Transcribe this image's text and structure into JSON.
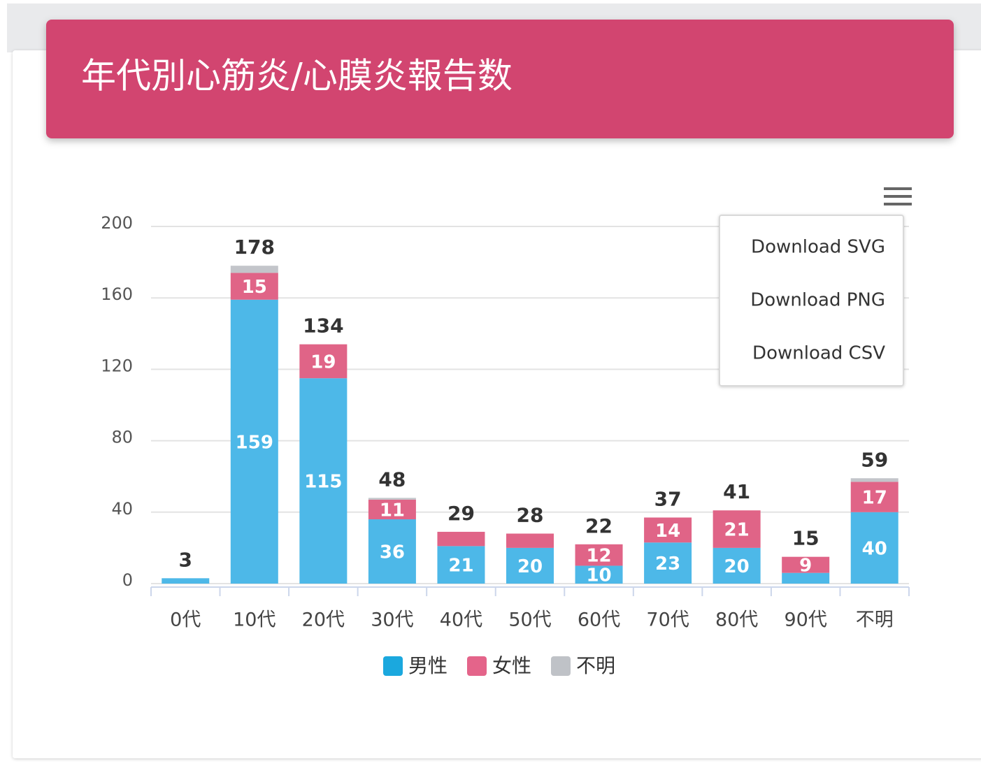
{
  "chart_data": {
    "type": "stacked_bar",
    "title": "年代別心筋炎/心膜炎報告数",
    "categories": [
      "0代",
      "10代",
      "20代",
      "30代",
      "40代",
      "50代",
      "60代",
      "70代",
      "80代",
      "90代",
      "不明"
    ],
    "series": [
      {
        "name": "男性",
        "color": "#4db8e8",
        "legend_color": "#1ba8de",
        "values": [
          3,
          159,
          115,
          36,
          21,
          20,
          10,
          23,
          20,
          6,
          40
        ]
      },
      {
        "name": "女性",
        "color": "#e06487",
        "legend_color": "#e4648a",
        "values": [
          0,
          15,
          19,
          11,
          8,
          8,
          12,
          14,
          21,
          9,
          17
        ]
      },
      {
        "name": "不明",
        "color": "#c3c5ca",
        "legend_color": "#bfc2c7",
        "values": [
          0,
          4,
          0,
          1,
          0,
          0,
          0,
          0,
          0,
          0,
          2
        ]
      }
    ],
    "totals": [
      3,
      178,
      134,
      48,
      29,
      28,
      22,
      37,
      41,
      15,
      59
    ],
    "ylim": [
      0,
      200
    ],
    "yticks": [
      0,
      40,
      80,
      120,
      160,
      200
    ],
    "grid": true
  },
  "menu": [
    "Download SVG",
    "Download PNG",
    "Download CSV"
  ]
}
